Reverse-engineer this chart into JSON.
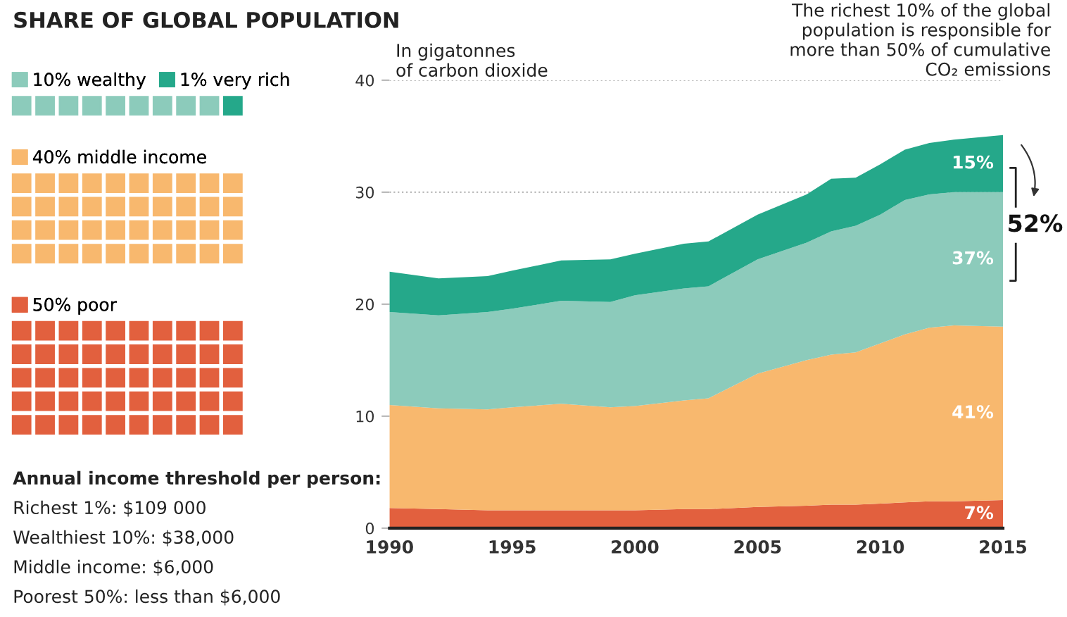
{
  "chart_data": {
    "type": "area",
    "stacked": true,
    "title": "SHARE OF GLOBAL POPULATION",
    "ylabel": "In gigatonnes\nof carbon dioxide",
    "x": [
      1990,
      1992,
      1994,
      1995,
      1997,
      1999,
      2000,
      2002,
      2003,
      2005,
      2007,
      2008,
      2009,
      2010,
      2011,
      2012,
      2013,
      2015
    ],
    "series": [
      {
        "name": "50% poor",
        "color": "#e2603e",
        "values": [
          1.8,
          1.7,
          1.6,
          1.6,
          1.6,
          1.6,
          1.6,
          1.7,
          1.7,
          1.9,
          2.0,
          2.1,
          2.1,
          2.2,
          2.3,
          2.4,
          2.4,
          2.5
        ]
      },
      {
        "name": "40% middle income",
        "color": "#f8b86e",
        "values": [
          9.2,
          9.0,
          9.0,
          9.2,
          9.5,
          9.2,
          9.3,
          9.7,
          9.9,
          11.9,
          13.0,
          13.4,
          13.6,
          14.3,
          15.0,
          15.5,
          15.7,
          15.5
        ]
      },
      {
        "name": "10% wealthy",
        "color": "#8ccbbb",
        "values": [
          8.3,
          8.3,
          8.7,
          8.8,
          9.2,
          9.4,
          9.9,
          10.0,
          10.0,
          10.2,
          10.5,
          11.0,
          11.3,
          11.5,
          12.0,
          11.9,
          11.9,
          12.0
        ]
      },
      {
        "name": "1% very rich",
        "color": "#25a88a",
        "values": [
          3.6,
          3.3,
          3.2,
          3.4,
          3.6,
          3.8,
          3.7,
          4.0,
          4.0,
          4.0,
          4.3,
          4.7,
          4.3,
          4.5,
          4.5,
          4.6,
          4.7,
          5.1
        ]
      }
    ],
    "xlim": [
      1990,
      2015
    ],
    "xticks": [
      1990,
      1995,
      2000,
      2005,
      2010,
      2015
    ],
    "ylim": [
      0,
      40
    ],
    "yticks": [
      0,
      10,
      20,
      30,
      40
    ],
    "grid": "y",
    "legend": "left",
    "annotations": [
      "The richest 10% of the global population is responsible for more than 50% of cumulative CO₂ emissions",
      "52%",
      "Annual income threshold per person:",
      "Richest 1%: $109 000",
      "Wealthiest 10%: $38,000",
      "Middle income: $6,000",
      "Poorest 50%: less than $6,000",
      "15%",
      "37%",
      "41%",
      "7%"
    ]
  }
}
